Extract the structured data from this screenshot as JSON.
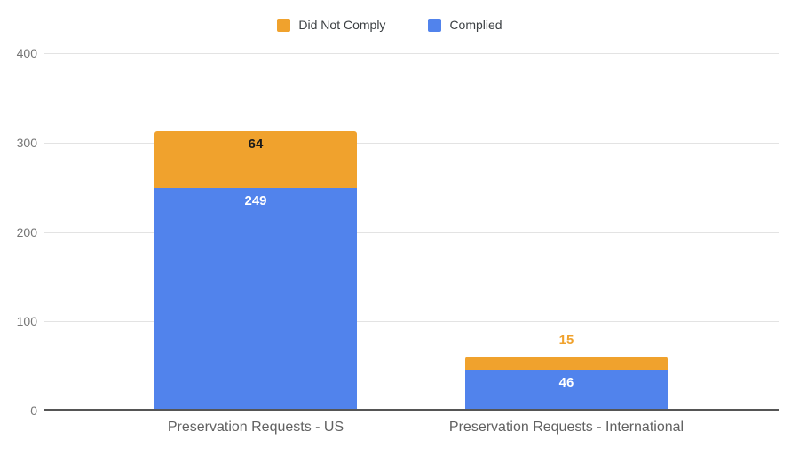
{
  "chart_data": {
    "type": "bar",
    "variant": "stacked-vertical",
    "title": "",
    "xlabel": "",
    "ylabel": "",
    "categories": [
      "Preservation Requests - US",
      "Preservation Requests - International"
    ],
    "series": [
      {
        "name": "Complied",
        "color": "#5183EC",
        "inside_label_color": "#ffffff",
        "values": [
          249,
          46
        ]
      },
      {
        "name": "Did Not Comply",
        "color": "#F0A22D",
        "inside_label_color": "#1a1a1a",
        "values": [
          64,
          15
        ]
      }
    ],
    "totals": [
      313,
      61
    ],
    "legend_order": [
      "Did Not Comply",
      "Complied"
    ],
    "legend_position": "top-center",
    "yticks": [
      0,
      100,
      200,
      300,
      400
    ],
    "ylim": [
      0,
      400
    ],
    "grid": true,
    "colors": {
      "gridline": "#e3e3e3",
      "axis_line": "#555555",
      "ytick_label": "#757575",
      "xtick_label": "#616161",
      "legend_label": "#3c4043",
      "background": "#ffffff"
    }
  }
}
